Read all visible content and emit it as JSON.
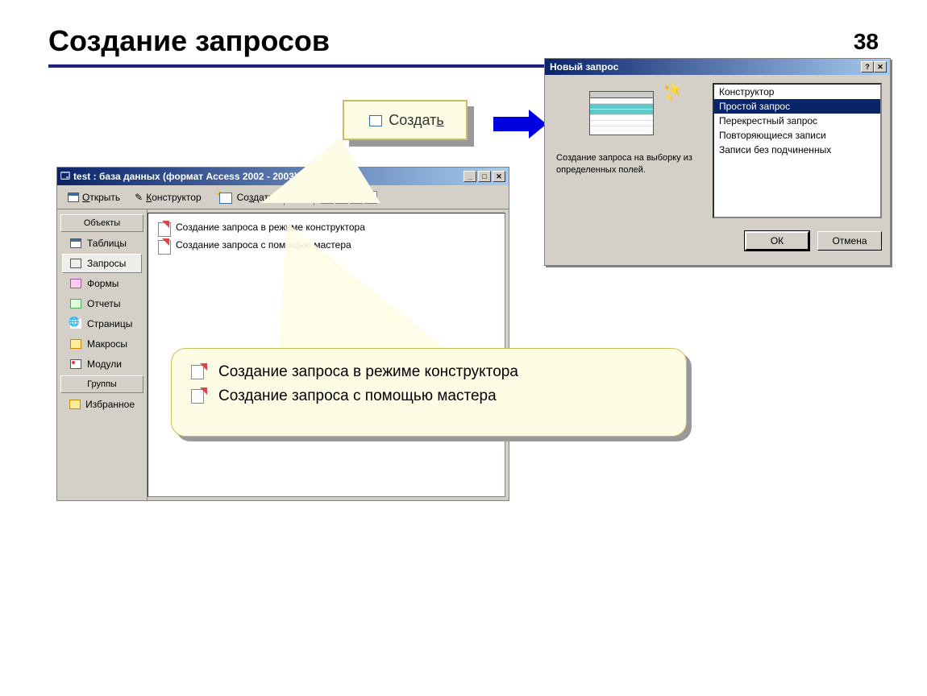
{
  "slide": {
    "title": "Создание запросов",
    "number": "38"
  },
  "callouts": {
    "create_label": "Создать",
    "zoom": {
      "row1": "Создание запроса в режиме конструктора",
      "row2": "Создание запроса с помощью мастера"
    }
  },
  "db_window": {
    "title": "test : база данных (формат Access 2002 - 2003)",
    "toolbar": {
      "open": "Открыть",
      "design": "Конструктор",
      "create": "Создать"
    },
    "sidebar": {
      "objects_header": "Объекты",
      "items": [
        {
          "label": "Таблицы"
        },
        {
          "label": "Запросы"
        },
        {
          "label": "Формы"
        },
        {
          "label": "Отчеты"
        },
        {
          "label": "Страницы"
        },
        {
          "label": "Макросы"
        },
        {
          "label": "Модули"
        }
      ],
      "groups_header": "Группы",
      "favorites": "Избранное"
    },
    "content": {
      "row1": "Создание запроса в режиме конструктора",
      "row2": "Создание запроса с помощью мастера"
    }
  },
  "dialog": {
    "title": "Новый запрос",
    "description": "Создание запроса на выборку из определенных полей.",
    "options": [
      "Конструктор",
      "Простой запрос",
      "Перекрестный запрос",
      "Повторяющиеся записи",
      "Записи без подчиненных"
    ],
    "selected_index": 1,
    "buttons": {
      "ok": "ОК",
      "cancel": "Отмена"
    }
  },
  "colors": {
    "rule": "#202080",
    "callout_bg": "#fdfde6",
    "callout_border": "#c8c060",
    "arrow": "#0000e0",
    "win_title_dark": "#0a246a",
    "win_title_light": "#a6caf0",
    "win_chrome": "#d4d0c8"
  }
}
